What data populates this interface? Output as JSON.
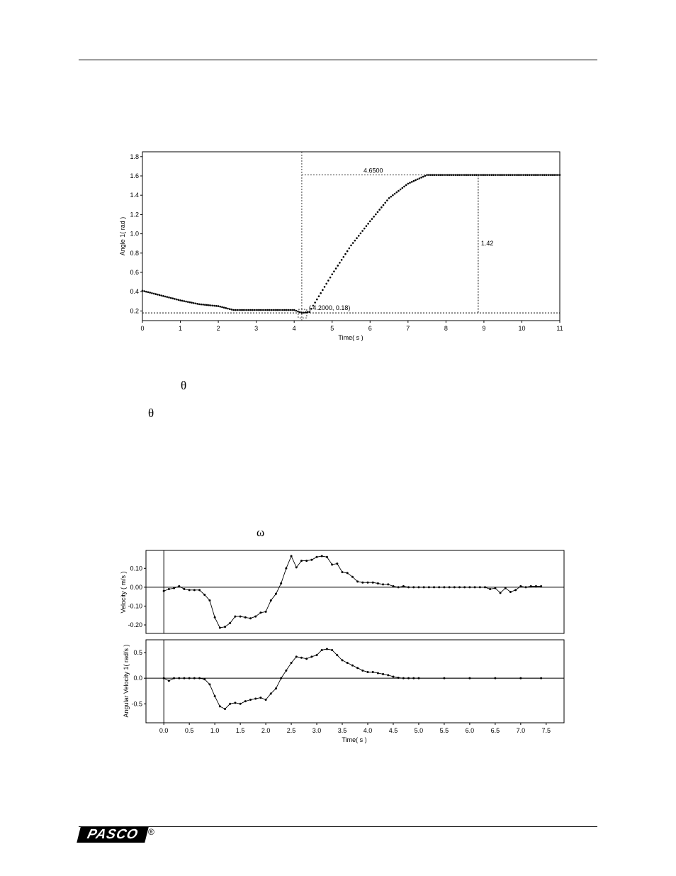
{
  "symbols": {
    "theta_1": "θ",
    "theta_2": "θ",
    "omega": "ω"
  },
  "logo": {
    "text": "PASCO",
    "reg": "®"
  },
  "chart_data": [
    {
      "type": "scatter",
      "ylabel": "Angle 1( rad )",
      "xlabel": "Time( s )",
      "xlim": [
        0,
        11
      ],
      "ylim": [
        0.1,
        1.85
      ],
      "xticks": [
        0,
        1,
        2,
        3,
        4,
        5,
        6,
        7,
        8,
        9,
        10,
        11
      ],
      "yticks": [
        0.2,
        0.4,
        0.6,
        0.8,
        1.0,
        1.2,
        1.4,
        1.6,
        1.8
      ],
      "ytick_labels": [
        "0.2",
        "0.4",
        "0.6",
        "0.8",
        "1.0",
        "1.2",
        "1.4",
        "1.6",
        "1.8"
      ],
      "grid": false,
      "series": [
        {
          "x": [
            0,
            0.5,
            1,
            1.5,
            2,
            2.4,
            3,
            3.5,
            4,
            4.2,
            4.4,
            5,
            5.5,
            6,
            6.5,
            7,
            7.5,
            8,
            9,
            10,
            11
          ],
          "y": [
            0.41,
            0.36,
            0.31,
            0.27,
            0.25,
            0.21,
            0.21,
            0.21,
            0.21,
            0.18,
            0.19,
            0.58,
            0.88,
            1.13,
            1.37,
            1.52,
            1.61,
            1.61,
            1.61,
            1.61,
            1.61
          ]
        }
      ],
      "annotations": [
        {
          "text": "4.6500",
          "x": 6.5,
          "y": 1.61
        },
        {
          "text": "1.42",
          "x": 8.85,
          "y": 0.9
        },
        {
          "text": "( 4.2000, 0.18)",
          "x": 4.2,
          "y": 0.18
        }
      ],
      "reference_lines": {
        "vertical_x": [
          4.2,
          8.85
        ],
        "horizontal_y": [
          0.18,
          1.61
        ]
      }
    },
    {
      "type": "line",
      "ylabel": "Velocity ( m/s )",
      "xlim": [
        -0.35,
        7.85
      ],
      "ylim": [
        -0.245,
        0.195
      ],
      "yticks": [
        -0.2,
        -0.1,
        0.0,
        0.1
      ],
      "ytick_labels": [
        "-0.20",
        "-0.10",
        "0.00",
        "0.10"
      ],
      "zero_line": true,
      "series": [
        {
          "x": [
            0.0,
            0.1,
            0.2,
            0.3,
            0.4,
            0.5,
            0.6,
            0.7,
            0.8,
            0.9,
            1.0,
            1.1,
            1.2,
            1.3,
            1.4,
            1.5,
            1.6,
            1.7,
            1.8,
            1.9,
            2.0,
            2.1,
            2.2,
            2.3,
            2.4,
            2.5,
            2.6,
            2.7,
            2.8,
            2.9,
            3.0,
            3.1,
            3.2,
            3.3,
            3.4,
            3.5,
            3.6,
            3.7,
            3.8,
            3.9,
            4.0,
            4.1,
            4.2,
            4.3,
            4.4,
            4.5,
            4.6,
            4.7,
            4.8,
            4.9,
            5.0,
            5.1,
            5.2,
            5.3,
            5.4,
            5.5,
            5.6,
            5.7,
            5.8,
            5.9,
            6.0,
            6.1,
            6.2,
            6.3,
            6.4,
            6.5,
            6.6,
            6.7,
            6.8,
            6.9,
            7.0,
            7.1,
            7.2,
            7.3,
            7.4
          ],
          "y": [
            -0.02,
            -0.01,
            -0.005,
            0.005,
            -0.01,
            -0.015,
            -0.015,
            -0.015,
            -0.04,
            -0.07,
            -0.16,
            -0.215,
            -0.21,
            -0.19,
            -0.155,
            -0.155,
            -0.16,
            -0.165,
            -0.155,
            -0.135,
            -0.13,
            -0.07,
            -0.035,
            0.02,
            0.1,
            0.165,
            0.105,
            0.14,
            0.14,
            0.145,
            0.16,
            0.165,
            0.16,
            0.12,
            0.125,
            0.08,
            0.075,
            0.055,
            0.03,
            0.025,
            0.025,
            0.025,
            0.02,
            0.015,
            0.015,
            0.005,
            0.0,
            0.005,
            0.0,
            0.0,
            0.0,
            0.0,
            0.0,
            0.0,
            0.0,
            0.0,
            0.0,
            0.0,
            0.0,
            0.0,
            0.0,
            0.0,
            0.0,
            0.0,
            -0.01,
            -0.005,
            -0.03,
            -0.005,
            -0.025,
            -0.015,
            0.005,
            0.0,
            0.005,
            0.005,
            0.005
          ]
        }
      ]
    },
    {
      "type": "line",
      "ylabel": "Angular Velocity 1( rad/s )",
      "xlabel": "Time( s )",
      "xlim": [
        -0.35,
        7.85
      ],
      "ylim": [
        -0.87,
        0.75
      ],
      "xticks": [
        0.0,
        0.5,
        1.0,
        1.5,
        2.0,
        2.5,
        3.0,
        3.5,
        4.0,
        4.5,
        5.0,
        5.5,
        6.0,
        6.5,
        7.0,
        7.5
      ],
      "xtick_labels": [
        "0.0",
        "0.5",
        "1.0",
        "1.5",
        "2.0",
        "2.5",
        "3.0",
        "3.5",
        "4.0",
        "4.5",
        "5.0",
        "5.5",
        "6.0",
        "6.5",
        "7.0",
        "7.5"
      ],
      "yticks": [
        -0.5,
        0.0,
        0.5
      ],
      "ytick_labels": [
        "-0.5",
        "0.0",
        "0.5"
      ],
      "zero_line": true,
      "series": [
        {
          "x": [
            0.0,
            0.1,
            0.2,
            0.3,
            0.4,
            0.5,
            0.6,
            0.7,
            0.8,
            0.9,
            1.0,
            1.1,
            1.2,
            1.3,
            1.4,
            1.5,
            1.6,
            1.7,
            1.8,
            1.9,
            2.0,
            2.1,
            2.2,
            2.3,
            2.4,
            2.5,
            2.6,
            2.7,
            2.8,
            2.9,
            3.0,
            3.1,
            3.2,
            3.3,
            3.4,
            3.5,
            3.6,
            3.7,
            3.8,
            3.9,
            4.0,
            4.1,
            4.2,
            4.3,
            4.4,
            4.5,
            4.6,
            4.7,
            4.8,
            4.9,
            5.0,
            5.5,
            6.0,
            6.5,
            7.0,
            7.4
          ],
          "y": [
            0.0,
            -0.05,
            0.0,
            0.0,
            0.0,
            0.0,
            0.0,
            0.0,
            -0.02,
            -0.12,
            -0.35,
            -0.55,
            -0.6,
            -0.5,
            -0.48,
            -0.5,
            -0.45,
            -0.42,
            -0.4,
            -0.38,
            -0.42,
            -0.3,
            -0.2,
            0.0,
            0.15,
            0.3,
            0.42,
            0.4,
            0.38,
            0.42,
            0.45,
            0.55,
            0.57,
            0.55,
            0.45,
            0.35,
            0.3,
            0.25,
            0.2,
            0.15,
            0.12,
            0.12,
            0.1,
            0.08,
            0.06,
            0.03,
            0.01,
            0.0,
            0.0,
            0.0,
            0.0,
            0.0,
            0.0,
            0.0,
            0.0,
            0.0
          ]
        }
      ]
    }
  ]
}
